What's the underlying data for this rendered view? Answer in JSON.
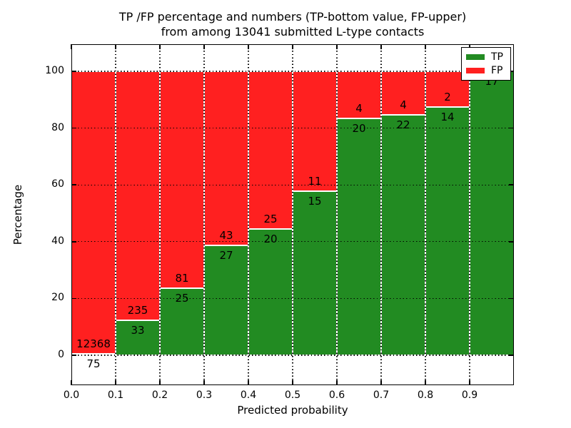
{
  "title": {
    "line1": "TP /FP percentage and numbers (TP-bottom value, FP-upper)",
    "line2": "from among 13041 submitted L-type contacts"
  },
  "chart_data": {
    "type": "bar",
    "subtype": "stacked-normalized-percentage",
    "title": "TP /FP percentage and numbers (TP-bottom value, FP-upper)\nfrom among 13041 submitted L-type contacts",
    "total_contacts": 13041,
    "xlabel": "Predicted probability",
    "ylabel": "Percentage",
    "categories": [
      "0.0-0.1",
      "0.1-0.2",
      "0.2-0.3",
      "0.3-0.4",
      "0.4-0.5",
      "0.5-0.6",
      "0.6-0.7",
      "0.7-0.8",
      "0.8-0.9",
      "0.9-1.0"
    ],
    "series": [
      {
        "name": "TP",
        "color": "#228b22",
        "values": [
          75,
          33,
          25,
          27,
          20,
          15,
          20,
          22,
          14,
          17
        ]
      },
      {
        "name": "FP",
        "color": "#ff2020",
        "values": [
          12368,
          235,
          81,
          43,
          25,
          11,
          4,
          4,
          2,
          0
        ]
      }
    ],
    "tp_percent": [
      0.6,
      12.3,
      23.6,
      38.6,
      44.4,
      57.7,
      83.3,
      84.6,
      87.5,
      100.0
    ],
    "xticks": [
      "0.0",
      "0.1",
      "0.2",
      "0.3",
      "0.4",
      "0.5",
      "0.6",
      "0.7",
      "0.8",
      "0.9"
    ],
    "yticks": [
      "0",
      "20",
      "40",
      "60",
      "80",
      "100"
    ],
    "ytick_values": [
      0,
      20,
      40,
      60,
      80,
      100
    ],
    "xlim": [
      0.0,
      1.0
    ],
    "ylim": [
      -10.5,
      109.5
    ],
    "grid": "dotted-black-both-axes",
    "bar_edge_color": "#ffffff",
    "legend": {
      "position": "upper right",
      "entries": [
        {
          "label": "TP",
          "color": "#228b22"
        },
        {
          "label": "FP",
          "color": "#ff2020"
        }
      ]
    }
  }
}
